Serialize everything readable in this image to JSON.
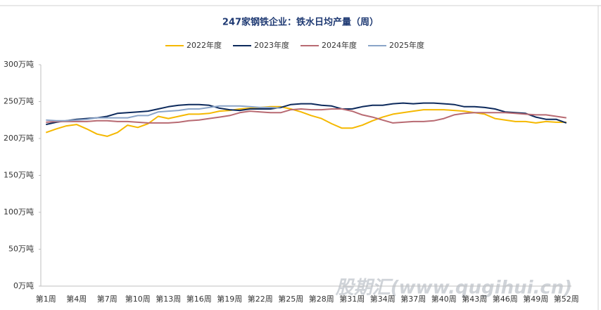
{
  "chart_data": {
    "type": "line",
    "title": "247家钢铁企业：铁水日均产量（周）",
    "watermark": "股期汇(www.qugihui.cn)",
    "categories": [
      "第1周",
      null,
      null,
      "第4周",
      null,
      null,
      "第7周",
      null,
      null,
      "第10周",
      null,
      null,
      "第13周",
      null,
      null,
      "第16周",
      null,
      null,
      "第19周",
      null,
      null,
      "第22周",
      null,
      null,
      "第25周",
      null,
      null,
      "第28周",
      null,
      null,
      "第31周",
      null,
      null,
      "第34周",
      null,
      null,
      "第37周",
      null,
      null,
      "第40周",
      null,
      null,
      "第43周",
      null,
      null,
      "第46周",
      null,
      null,
      "第49周",
      null,
      null,
      "第52周"
    ],
    "series": [
      {
        "name": "2022年度",
        "color": "#f5b800",
        "values": [
          208,
          213,
          217,
          219,
          213,
          206,
          203,
          208,
          218,
          215,
          220,
          230,
          227,
          230,
          233,
          233,
          234,
          237,
          238,
          240,
          241,
          242,
          243,
          243,
          240,
          236,
          231,
          227,
          220,
          214,
          214,
          218,
          224,
          229,
          233,
          235,
          237,
          239,
          239,
          239,
          238,
          237,
          235,
          233,
          227,
          225,
          223,
          223,
          221,
          223,
          222,
          222
        ]
      },
      {
        "name": "2023年度",
        "color": "#0d2a5c",
        "values": [
          219,
          222,
          224,
          226,
          227,
          228,
          230,
          234,
          235,
          236,
          237,
          240,
          243,
          245,
          246,
          246,
          245,
          241,
          239,
          238,
          240,
          240,
          240,
          242,
          246,
          247,
          247,
          245,
          244,
          240,
          240,
          243,
          245,
          245,
          247,
          248,
          247,
          248,
          248,
          247,
          246,
          243,
          243,
          242,
          240,
          236,
          235,
          234,
          229,
          226,
          226,
          221
        ]
      },
      {
        "name": "2024年度",
        "color": "#b86a72",
        "values": [
          222,
          223,
          223,
          223,
          223,
          224,
          224,
          223,
          223,
          222,
          221,
          221,
          221,
          222,
          224,
          225,
          227,
          229,
          231,
          235,
          237,
          236,
          235,
          235,
          239,
          240,
          239,
          239,
          240,
          240,
          237,
          232,
          229,
          225,
          221,
          222,
          223,
          223,
          224,
          227,
          232,
          234,
          235,
          235,
          235,
          235,
          234,
          233,
          232,
          232,
          230,
          228
        ]
      },
      {
        "name": "2025年度",
        "color": "#8aa4c8",
        "values": [
          225,
          224,
          224,
          225,
          226,
          228,
          228,
          228,
          228,
          231,
          231,
          236,
          237,
          238,
          240,
          240,
          242,
          244,
          244,
          244,
          243,
          242,
          242,
          241,
          null,
          null,
          null,
          null,
          null,
          null,
          null,
          null,
          null,
          null,
          null,
          null,
          null,
          null,
          null,
          null,
          null,
          null,
          null,
          null,
          null,
          null,
          null,
          null,
          null,
          null,
          null,
          null
        ]
      }
    ],
    "ylim": [
      0,
      300
    ],
    "yticks": [
      {
        "value": 0,
        "label": "0万吨"
      },
      {
        "value": 50,
        "label": "50万吨"
      },
      {
        "value": 100,
        "label": "100万吨"
      },
      {
        "value": 150,
        "label": "150万吨"
      },
      {
        "value": 200,
        "label": "200万吨"
      },
      {
        "value": 250,
        "label": "250万吨"
      },
      {
        "value": 300,
        "label": "300万吨"
      }
    ],
    "grid": false,
    "legend": "top"
  }
}
